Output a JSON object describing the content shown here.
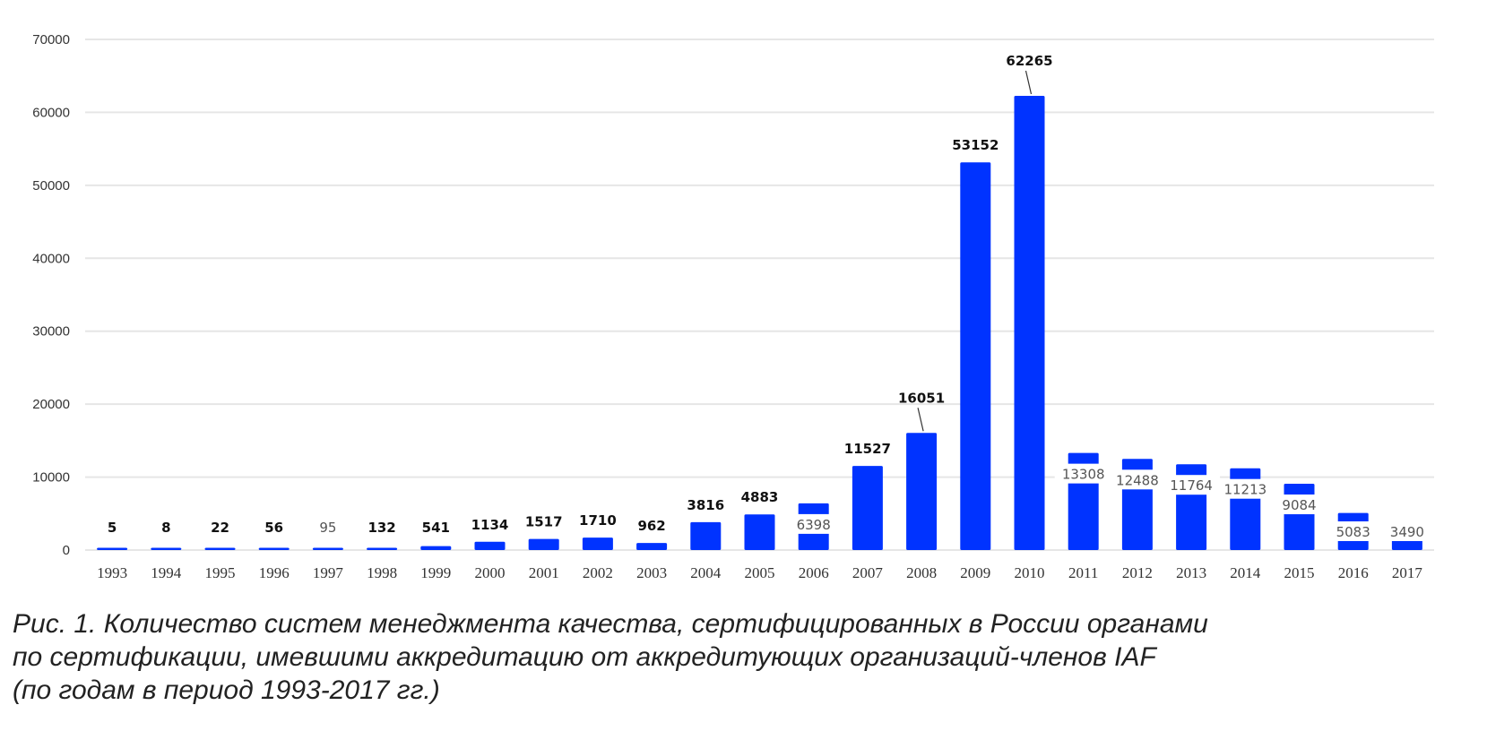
{
  "chart_data": {
    "type": "bar",
    "categories": [
      "1993",
      "1994",
      "1995",
      "1996",
      "1997",
      "1998",
      "1999",
      "2000",
      "2001",
      "2002",
      "2003",
      "2004",
      "2005",
      "2006",
      "2007",
      "2008",
      "2009",
      "2010",
      "2011",
      "2012",
      "2013",
      "2014",
      "2015",
      "2016",
      "2017"
    ],
    "values": [
      5,
      8,
      22,
      56,
      95,
      132,
      541,
      1134,
      1517,
      1710,
      962,
      3816,
      4883,
      6398,
      11527,
      16051,
      53152,
      62265,
      13308,
      12488,
      11764,
      11213,
      9084,
      5083,
      3490
    ],
    "data_labels": [
      "5",
      "8",
      "22",
      "56",
      "95",
      "132",
      "541",
      "1134",
      "1517",
      "1710",
      "962",
      "3816",
      "4883",
      "6398",
      "11527",
      "16051",
      "53152",
      "62265",
      "13308",
      "12488",
      "11764",
      "11213",
      "9084",
      "5083",
      "3490"
    ],
    "ylim": [
      0,
      70000
    ],
    "yticks": [
      "0",
      "10000",
      "20000",
      "30000",
      "40000",
      "50000",
      "60000",
      "70000"
    ],
    "grid": true,
    "bar_color": "#0033FF",
    "grid_color": "#E6E6E6"
  },
  "caption": "Рис. 1. Количество систем менеджмента качества, сертифицированных в России органами\nпо сертификации, имевшими аккредитацию от аккредитующих организаций-членов IAF\n(по годам в период 1993-2017 гг.)"
}
